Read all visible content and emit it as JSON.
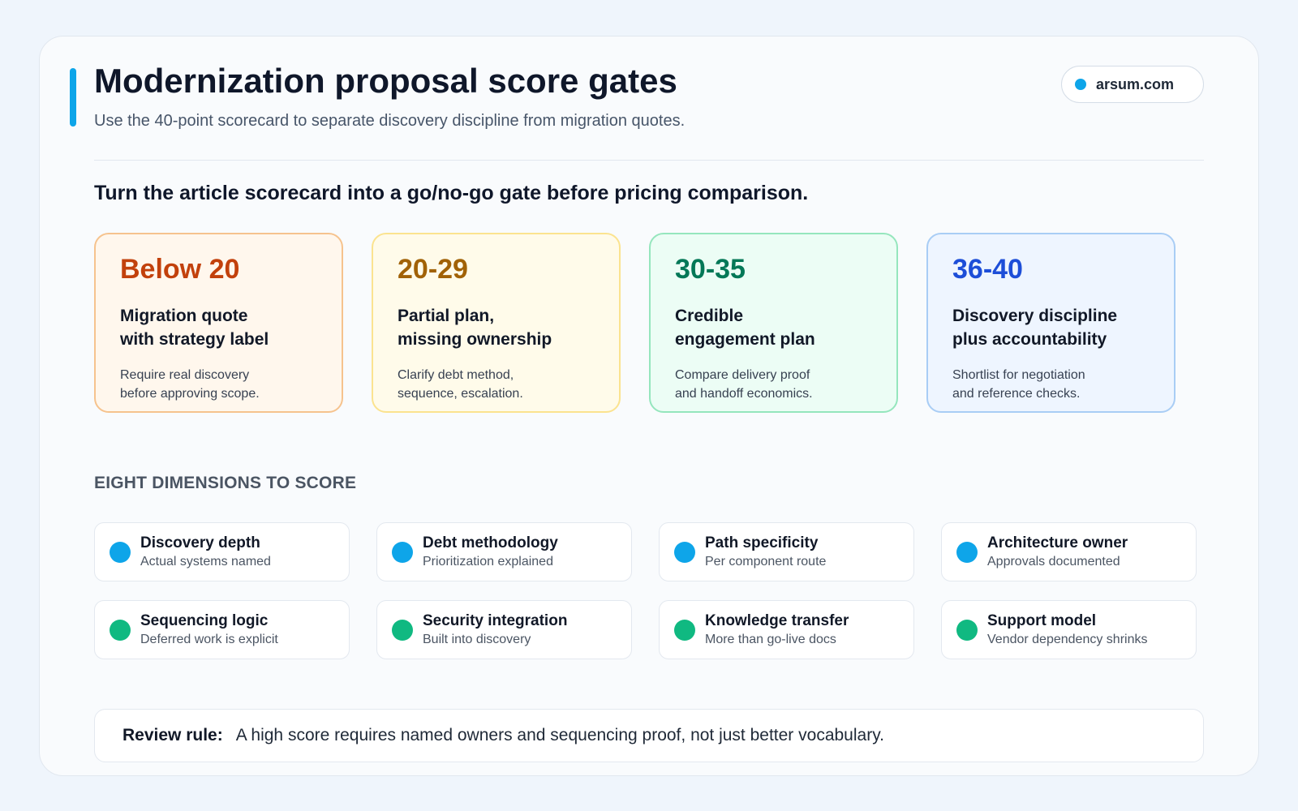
{
  "header": {
    "title": "Modernization proposal score gates",
    "subtitle": "Use the 40-point scorecard to separate discovery discipline from migration quotes.",
    "domain": "arsum.com",
    "accent_color": "#0ea5e9"
  },
  "lead": "Turn the article scorecard into a go/no-go gate before pricing comparison.",
  "gates": [
    {
      "range": "Below 20",
      "heading_line1": "Migration quote",
      "heading_line2": "with strategy label",
      "note_line1": "Require real discovery",
      "note_line2": "before approving scope.",
      "color": "#c2410c",
      "bg": "#fff7ed",
      "border": "#f6c38e"
    },
    {
      "range": "20-29",
      "heading_line1": "Partial plan,",
      "heading_line2": "missing ownership",
      "note_line1": "Clarify debt method,",
      "note_line2": "sequence, escalation.",
      "color": "#a16207",
      "bg": "#fffbea",
      "border": "#fbe38f"
    },
    {
      "range": "30-35",
      "heading_line1": "Credible",
      "heading_line2": "engagement plan",
      "note_line1": "Compare delivery proof",
      "note_line2": "and handoff economics.",
      "color": "#047857",
      "bg": "#ecfdf5",
      "border": "#95e6bd"
    },
    {
      "range": "36-40",
      "heading_line1": "Discovery discipline",
      "heading_line2": "plus accountability",
      "note_line1": "Shortlist for negotiation",
      "note_line2": "and reference checks.",
      "color": "#1d4ed8",
      "bg": "#eef5ff",
      "border": "#a9cdf5"
    }
  ],
  "dimensions_label": "EIGHT DIMENSIONS TO SCORE",
  "dimensions": [
    {
      "name": "Discovery depth",
      "desc": "Actual systems named",
      "color": "#0ea5e9"
    },
    {
      "name": "Debt methodology",
      "desc": "Prioritization explained",
      "color": "#0ea5e9"
    },
    {
      "name": "Path specificity",
      "desc": "Per component route",
      "color": "#0ea5e9"
    },
    {
      "name": "Architecture owner",
      "desc": "Approvals documented",
      "color": "#0ea5e9"
    },
    {
      "name": "Sequencing logic",
      "desc": "Deferred work is explicit",
      "color": "#10b981"
    },
    {
      "name": "Security integration",
      "desc": "Built into discovery",
      "color": "#10b981"
    },
    {
      "name": "Knowledge transfer",
      "desc": "More than go-live docs",
      "color": "#10b981"
    },
    {
      "name": "Support model",
      "desc": "Vendor dependency shrinks",
      "color": "#10b981"
    }
  ],
  "rule": {
    "label": "Review rule:",
    "text": "A high score requires named owners and sequencing proof, not just better vocabulary."
  }
}
